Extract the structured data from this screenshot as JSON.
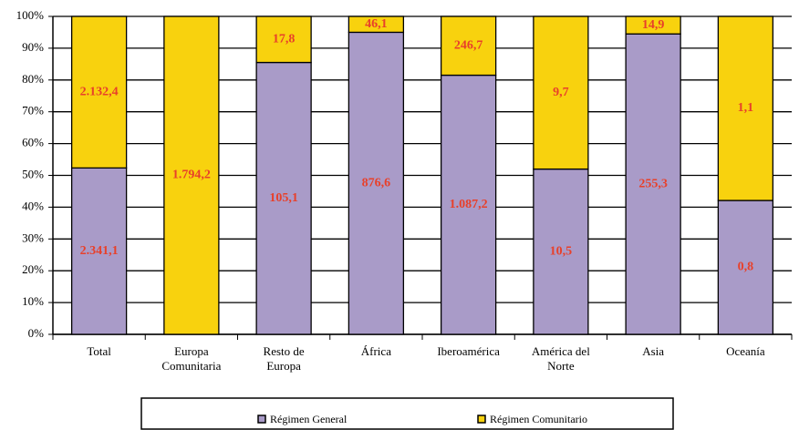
{
  "chart_data": {
    "type": "bar",
    "stacking": "percent",
    "categories": [
      "Total",
      "Europa\nComunitaria",
      "Resto de\nEuropa",
      "África",
      "Iberoamérica",
      "América del\nNorte",
      "Asia",
      "Oceanía"
    ],
    "series": [
      {
        "name": "Régimen General",
        "color": "#a99bc8",
        "values": [
          2341.1,
          0,
          105.1,
          876.6,
          1087.2,
          10.5,
          255.3,
          0.8
        ],
        "value_labels": [
          "2.341,1",
          null,
          "105,1",
          "876,6",
          "1.087,2",
          "10,5",
          "255,3",
          "0,8"
        ]
      },
      {
        "name": "Régimen Comunitario",
        "color": "#f8d20e",
        "values": [
          2132.4,
          1794.2,
          17.8,
          46.1,
          246.7,
          9.7,
          14.9,
          1.1
        ],
        "value_labels": [
          "2.132,4",
          "1.794,2",
          "17,8",
          "46,1",
          "246,7",
          "9,7",
          "14,9",
          "1,1"
        ]
      }
    ],
    "ylim": [
      0,
      100
    ],
    "yticks": [
      {
        "value": 0,
        "label": "0%"
      },
      {
        "value": 10,
        "label": "10%"
      },
      {
        "value": 20,
        "label": "20%"
      },
      {
        "value": 30,
        "label": "30%"
      },
      {
        "value": 40,
        "label": "40%"
      },
      {
        "value": 50,
        "label": "50%"
      },
      {
        "value": 60,
        "label": "60%"
      },
      {
        "value": 70,
        "label": "70%"
      },
      {
        "value": 80,
        "label": "80%"
      },
      {
        "value": 90,
        "label": "90%"
      },
      {
        "value": 100,
        "label": "100%"
      }
    ],
    "grid": true,
    "legend": "bottom"
  }
}
